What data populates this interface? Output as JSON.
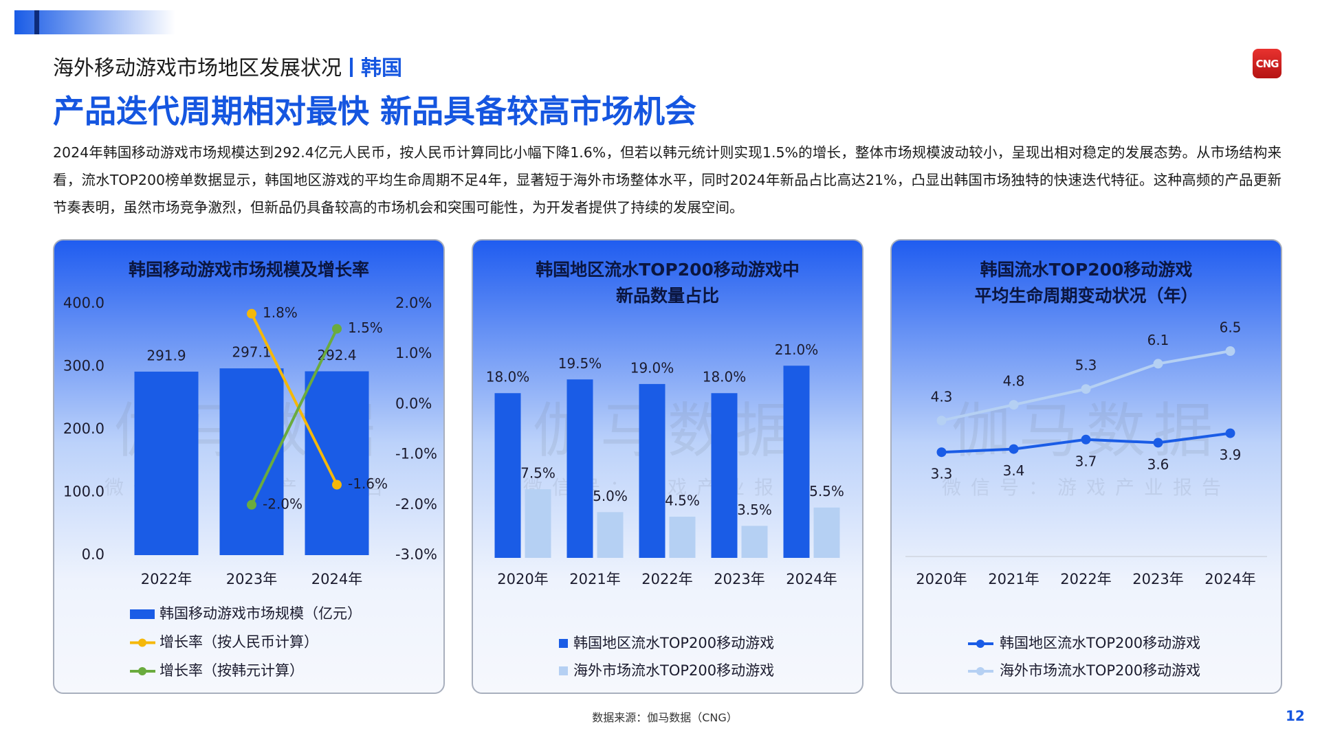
{
  "header": {
    "subtitle": "海外移动游戏市场地区发展状况",
    "region": "韩国",
    "title": "产品迭代周期相对最快 新品具备较高市场机会",
    "body": "2024年韩国移动游戏市场规模达到292.4亿元人民币，按人民币计算同比小幅下降1.6%，但若以韩元统计则实现1.5%的增长，整体市场规模波动较小，呈现出相对稳定的发展态势。从市场结构来看，流水TOP200榜单数据显示，韩国地区游戏的平均生命周期不足4年，显著短于海外市场整体水平，同时2024年新品占比高达21%，凸显出韩国市场独特的快速迭代特征。这种高频的产品更新节奏表明，虽然市场竞争激烈，但新品仍具备较高的市场机会和突围可能性，为开发者提供了持续的发展空间。"
  },
  "logo": "CNG",
  "watermark": {
    "name": "伽马数据",
    "sub": "微信号：游戏产业报告"
  },
  "chart_data": [
    {
      "type": "bar",
      "title": [
        "韩国移动游戏市场规模及增长率"
      ],
      "categories": [
        "2022年",
        "2023年",
        "2024年"
      ],
      "series": [
        {
          "name": "韩国移动游戏市场规模（亿元）",
          "type": "bar",
          "color": "#1a5ce6",
          "values": [
            291.9,
            297.1,
            292.4
          ]
        },
        {
          "name": "增长率（按人民币计算）",
          "type": "line",
          "axis": "y2",
          "color": "#f5b80a",
          "values": [
            null,
            1.8,
            -1.6
          ],
          "value_labels": [
            null,
            "1.8%",
            "-1.6%"
          ]
        },
        {
          "name": "增长率（按韩元计算）",
          "type": "line",
          "axis": "y2",
          "color": "#6aab3e",
          "values": [
            null,
            -2.0,
            1.5
          ],
          "value_labels": [
            null,
            "-2.0%",
            "1.5%"
          ]
        }
      ],
      "ylim": [
        0,
        400
      ],
      "yticks": [
        {
          "value": 0,
          "label": "0.0"
        },
        {
          "value": 100,
          "label": "100.0"
        },
        {
          "value": 200,
          "label": "200.0"
        },
        {
          "value": 300,
          "label": "300.0"
        },
        {
          "value": 400,
          "label": "400.0"
        }
      ],
      "y2lim": [
        -3,
        2
      ],
      "y2ticks": [
        {
          "value": -3,
          "label": "-3.0%"
        },
        {
          "value": -2,
          "label": "-2.0%"
        },
        {
          "value": -1,
          "label": "-1.0%"
        },
        {
          "value": 0,
          "label": "0.0%"
        },
        {
          "value": 1,
          "label": "1.0%"
        },
        {
          "value": 2,
          "label": "2.0%"
        }
      ]
    },
    {
      "type": "bar",
      "title": [
        "韩国地区流水TOP200移动游戏中",
        "新品数量占比"
      ],
      "categories": [
        "2020年",
        "2021年",
        "2022年",
        "2023年",
        "2024年"
      ],
      "series": [
        {
          "name": "韩国地区流水TOP200移动游戏",
          "type": "bar",
          "color": "#1a5ce6",
          "values": [
            18.0,
            19.5,
            19.0,
            18.0,
            21.0
          ],
          "value_labels": [
            "18.0%",
            "19.5%",
            "19.0%",
            "18.0%",
            "21.0%"
          ]
        },
        {
          "name": "海外市场流水TOP200移动游戏",
          "type": "bar",
          "color": "#b5d0f3",
          "values": [
            7.5,
            5.0,
            4.5,
            3.5,
            5.5
          ],
          "value_labels": [
            "7.5%",
            "5.0%",
            "4.5%",
            "3.5%",
            "5.5%"
          ]
        }
      ],
      "ylim": [
        0,
        25
      ]
    },
    {
      "type": "line",
      "title": [
        "韩国流水TOP200移动游戏",
        "平均生命周期变动状况（年）"
      ],
      "categories": [
        "2020年",
        "2021年",
        "2022年",
        "2023年",
        "2024年"
      ],
      "series": [
        {
          "name": "韩国地区流水TOP200移动游戏",
          "type": "line",
          "color": "#1a5ce6",
          "values": [
            3.3,
            3.4,
            3.7,
            3.6,
            3.9
          ]
        },
        {
          "name": "海外市场流水TOP200移动游戏",
          "type": "line",
          "color": "#b5d0f3",
          "values": [
            4.3,
            4.8,
            5.3,
            6.1,
            6.5
          ]
        }
      ],
      "ylim": [
        0,
        8
      ]
    }
  ],
  "source": "数据来源：伽马数据（CNG）",
  "page": "12"
}
